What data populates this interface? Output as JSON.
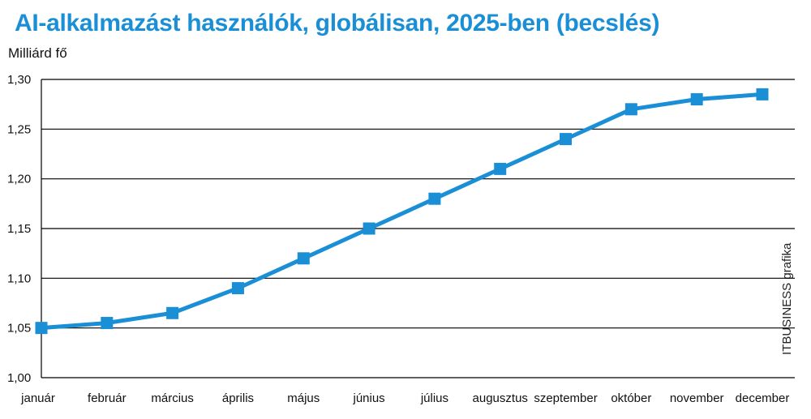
{
  "chart_data": {
    "type": "line",
    "title": "AI-alkalmazást használók, globálisan, 2025-ben (becslés)",
    "ylabel": "Milliárd fő",
    "credit": "ITBUSINESS grafika",
    "categories": [
      "január",
      "február",
      "március",
      "április",
      "május",
      "június",
      "július",
      "augusztus",
      "szeptember",
      "október",
      "november",
      "december"
    ],
    "series": [
      {
        "values": [
          1.05,
          1.055,
          1.065,
          1.09,
          1.12,
          1.15,
          1.18,
          1.21,
          1.24,
          1.27,
          1.28,
          1.285
        ]
      }
    ],
    "yticks": [
      1.0,
      1.05,
      1.1,
      1.15,
      1.2,
      1.25,
      1.3
    ],
    "yticklabels": [
      "1,00",
      "1,05",
      "1,10",
      "1,15",
      "1,20",
      "1,25",
      "1,30"
    ],
    "ylim": [
      1.0,
      1.3
    ],
    "grid": "horizontal",
    "colors": {
      "title": "#1a8fd6",
      "line": "#1a8fd6",
      "marker": "#1a8fd6",
      "grid": "#000000"
    }
  }
}
